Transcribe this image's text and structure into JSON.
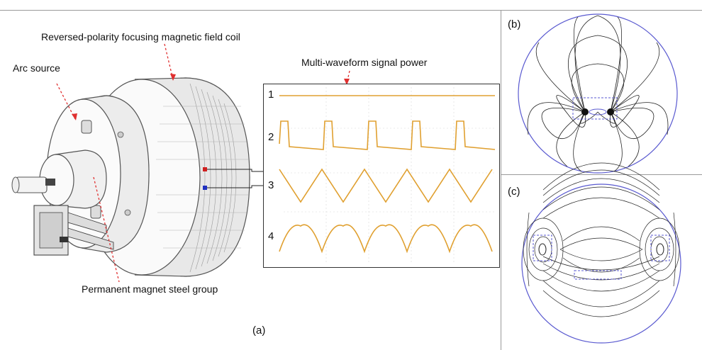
{
  "labels": {
    "coil": "Reversed-polarity focusing magnetic field coil",
    "arc_source": "Arc source",
    "signal_power": "Multi-waveform signal power",
    "magnet_group": "Permanent magnet steel group"
  },
  "panels": {
    "a": "(a)",
    "b": "(b)",
    "c": "(c)"
  },
  "scope": {
    "channels": [
      "1",
      "2",
      "3",
      "4"
    ],
    "trace_color": "#e0a030"
  },
  "colors": {
    "field_line": "#222222",
    "boundary": "#5a5ad0",
    "pointer": "#e03030"
  }
}
